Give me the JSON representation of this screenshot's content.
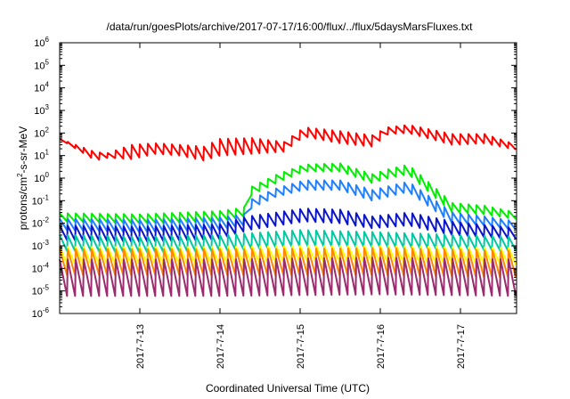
{
  "chart_data": {
    "type": "line",
    "title": "/data/run/goesPlots/archive/2017-07-17/16:00/flux/../flux/5daysMarsFluxes.txt",
    "xlabel": "Coordinated Universal Time (UTC)",
    "ylabel_parts": [
      "protons/cm",
      "2",
      "-s-sr-MeV"
    ],
    "yscale": "log",
    "ylim_exp": [
      -6,
      6
    ],
    "y_ticks": [
      {
        "base": "10",
        "exp": "6"
      },
      {
        "base": "10",
        "exp": "5"
      },
      {
        "base": "10",
        "exp": "4"
      },
      {
        "base": "10",
        "exp": "3"
      },
      {
        "base": "10",
        "exp": "2"
      },
      {
        "base": "10",
        "exp": "1"
      },
      {
        "base": "10",
        "exp": "0"
      },
      {
        "base": "10",
        "exp": "-1"
      },
      {
        "base": "10",
        "exp": "-2"
      },
      {
        "base": "10",
        "exp": "-3"
      },
      {
        "base": "10",
        "exp": "-4"
      },
      {
        "base": "10",
        "exp": "-5"
      },
      {
        "base": "10",
        "exp": "-6"
      }
    ],
    "x_range_days": [
      12.0,
      17.7
    ],
    "x_ticks": [
      {
        "label": "2017-7-13",
        "day": 13
      },
      {
        "label": "2017-7-14",
        "day": 14
      },
      {
        "label": "2017-7-15",
        "day": 15
      },
      {
        "label": "2017-7-16",
        "day": 16
      },
      {
        "label": "2017-7-17",
        "day": 17
      }
    ],
    "grid": false,
    "legend": "none",
    "series": [
      {
        "color": "#ff0000",
        "sawtooth": [
          {
            "day": 12.0,
            "lo": 55,
            "hi": 55
          },
          {
            "day": 12.45,
            "lo": 6,
            "hi": 14
          },
          {
            "day": 12.6,
            "lo": 8,
            "hi": 13
          },
          {
            "day": 12.9,
            "lo": 7,
            "hi": 30
          },
          {
            "day": 13.2,
            "lo": 12,
            "hi": 35
          },
          {
            "day": 13.5,
            "lo": 10,
            "hi": 30
          },
          {
            "day": 13.8,
            "lo": 6,
            "hi": 25
          },
          {
            "day": 14.0,
            "lo": 10,
            "hi": 55
          },
          {
            "day": 14.4,
            "lo": 12,
            "hi": 60
          },
          {
            "day": 14.8,
            "lo": 15,
            "hi": 40
          },
          {
            "day": 15.05,
            "lo": 70,
            "hi": 180
          },
          {
            "day": 15.5,
            "lo": 35,
            "hi": 120
          },
          {
            "day": 15.9,
            "lo": 25,
            "hi": 80
          },
          {
            "day": 16.1,
            "lo": 90,
            "hi": 180
          },
          {
            "day": 16.35,
            "lo": 100,
            "hi": 230
          },
          {
            "day": 16.9,
            "lo": 30,
            "hi": 90
          },
          {
            "day": 17.3,
            "lo": 35,
            "hi": 90
          },
          {
            "day": 17.7,
            "lo": 18,
            "hi": 30
          }
        ]
      },
      {
        "color": "#00ee00",
        "sawtooth": [
          {
            "day": 12.0,
            "lo": 0.012,
            "hi": 0.028
          },
          {
            "day": 13.0,
            "lo": 0.01,
            "hi": 0.025
          },
          {
            "day": 14.0,
            "lo": 0.012,
            "hi": 0.035
          },
          {
            "day": 14.3,
            "lo": 0.02,
            "hi": 0.05
          },
          {
            "day": 14.35,
            "lo": 0.15,
            "hi": 0.35
          },
          {
            "day": 14.7,
            "lo": 0.6,
            "hi": 1.4
          },
          {
            "day": 15.05,
            "lo": 2.0,
            "hi": 4.0
          },
          {
            "day": 15.5,
            "lo": 2.0,
            "hi": 4.5
          },
          {
            "day": 15.9,
            "lo": 0.6,
            "hi": 1.5
          },
          {
            "day": 16.1,
            "lo": 1.0,
            "hi": 2.5
          },
          {
            "day": 16.35,
            "lo": 1.5,
            "hi": 4.0
          },
          {
            "day": 16.9,
            "lo": 0.03,
            "hi": 0.08
          },
          {
            "day": 17.3,
            "lo": 0.025,
            "hi": 0.06
          },
          {
            "day": 17.7,
            "lo": 0.015,
            "hi": 0.03
          }
        ]
      },
      {
        "color": "#1e7fff",
        "sawtooth": [
          {
            "day": 12.0,
            "lo": 0.005,
            "hi": 0.016
          },
          {
            "day": 13.0,
            "lo": 0.004,
            "hi": 0.014
          },
          {
            "day": 14.0,
            "lo": 0.005,
            "hi": 0.018
          },
          {
            "day": 14.3,
            "lo": 0.008,
            "hi": 0.025
          },
          {
            "day": 14.35,
            "lo": 0.04,
            "hi": 0.1
          },
          {
            "day": 14.7,
            "lo": 0.15,
            "hi": 0.35
          },
          {
            "day": 15.05,
            "lo": 0.3,
            "hi": 0.8
          },
          {
            "day": 15.5,
            "lo": 0.3,
            "hi": 0.8
          },
          {
            "day": 15.9,
            "lo": 0.1,
            "hi": 0.3
          },
          {
            "day": 16.35,
            "lo": 0.25,
            "hi": 0.7
          },
          {
            "day": 16.9,
            "lo": 0.01,
            "hi": 0.03
          },
          {
            "day": 17.3,
            "lo": 0.008,
            "hi": 0.02
          },
          {
            "day": 17.7,
            "lo": 0.005,
            "hi": 0.012
          }
        ]
      },
      {
        "color": "#0a14c8",
        "sawtooth": [
          {
            "day": 12.0,
            "lo": 0.0018,
            "hi": 0.008
          },
          {
            "day": 13.0,
            "lo": 0.0015,
            "hi": 0.007
          },
          {
            "day": 14.0,
            "lo": 0.002,
            "hi": 0.009
          },
          {
            "day": 14.35,
            "lo": 0.005,
            "hi": 0.02
          },
          {
            "day": 15.05,
            "lo": 0.012,
            "hi": 0.045
          },
          {
            "day": 15.5,
            "lo": 0.01,
            "hi": 0.04
          },
          {
            "day": 15.9,
            "lo": 0.006,
            "hi": 0.02
          },
          {
            "day": 16.35,
            "lo": 0.008,
            "hi": 0.03
          },
          {
            "day": 16.9,
            "lo": 0.003,
            "hi": 0.012
          },
          {
            "day": 17.7,
            "lo": 0.002,
            "hi": 0.006
          }
        ]
      },
      {
        "color": "#00c8a0",
        "sawtooth": [
          {
            "day": 12.0,
            "lo": 0.0006,
            "hi": 0.003
          },
          {
            "day": 13.0,
            "lo": 0.0005,
            "hi": 0.0025
          },
          {
            "day": 14.0,
            "lo": 0.0006,
            "hi": 0.003
          },
          {
            "day": 15.0,
            "lo": 0.001,
            "hi": 0.005
          },
          {
            "day": 16.0,
            "lo": 0.0009,
            "hi": 0.004
          },
          {
            "day": 17.0,
            "lo": 0.0007,
            "hi": 0.003
          },
          {
            "day": 17.7,
            "lo": 0.0006,
            "hi": 0.0025
          }
        ]
      },
      {
        "color": "#ffff00",
        "sawtooth": [
          {
            "day": 12.0,
            "lo": 0.00015,
            "hi": 0.0009
          },
          {
            "day": 14.0,
            "lo": 0.00015,
            "hi": 0.0009
          },
          {
            "day": 15.0,
            "lo": 0.0002,
            "hi": 0.001
          },
          {
            "day": 16.0,
            "lo": 0.00018,
            "hi": 0.001
          },
          {
            "day": 17.7,
            "lo": 0.00015,
            "hi": 0.0008
          }
        ]
      },
      {
        "color": "#ff8800",
        "sawtooth": [
          {
            "day": 12.0,
            "lo": 5e-05,
            "hi": 0.0007
          },
          {
            "day": 14.0,
            "lo": 5e-05,
            "hi": 0.0007
          },
          {
            "day": 16.0,
            "lo": 5e-05,
            "hi": 0.0008
          },
          {
            "day": 17.7,
            "lo": 4e-05,
            "hi": 0.0006
          }
        ]
      },
      {
        "color": "#9a2c6e",
        "sawtooth": [
          {
            "day": 12.0,
            "lo": 6e-06,
            "hi": 0.00025
          },
          {
            "day": 14.0,
            "lo": 6e-06,
            "hi": 0.00025
          },
          {
            "day": 16.0,
            "lo": 7e-06,
            "hi": 0.0003
          },
          {
            "day": 17.7,
            "lo": 6e-06,
            "hi": 0.00025
          }
        ]
      }
    ]
  }
}
